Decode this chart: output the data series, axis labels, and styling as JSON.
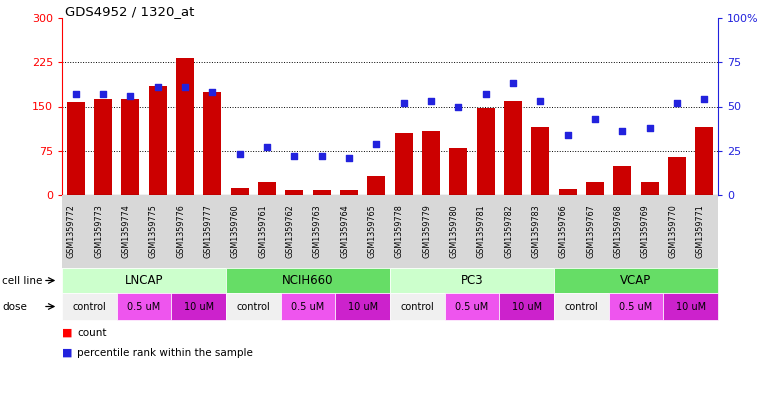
{
  "title": "GDS4952 / 1320_at",
  "samples": [
    "GSM1359772",
    "GSM1359773",
    "GSM1359774",
    "GSM1359775",
    "GSM1359776",
    "GSM1359777",
    "GSM1359760",
    "GSM1359761",
    "GSM1359762",
    "GSM1359763",
    "GSM1359764",
    "GSM1359765",
    "GSM1359778",
    "GSM1359779",
    "GSM1359780",
    "GSM1359781",
    "GSM1359782",
    "GSM1359783",
    "GSM1359766",
    "GSM1359767",
    "GSM1359768",
    "GSM1359769",
    "GSM1359770",
    "GSM1359771"
  ],
  "counts": [
    158,
    162,
    163,
    185,
    232,
    175,
    12,
    22,
    8,
    8,
    8,
    32,
    105,
    108,
    80,
    147,
    160,
    115,
    10,
    22,
    50,
    22,
    65,
    115
  ],
  "percentile": [
    57,
    57,
    56,
    61,
    61,
    58,
    23,
    27,
    22,
    22,
    21,
    29,
    52,
    53,
    50,
    57,
    63,
    53,
    34,
    43,
    36,
    38,
    52,
    54
  ],
  "cell_lines": [
    "LNCAP",
    "NCIH660",
    "PC3",
    "VCAP"
  ],
  "cell_line_colors": [
    "#ccffcc",
    "#66dd66",
    "#ccffcc",
    "#66dd66"
  ],
  "dose_labels_cycle": [
    "control",
    "0.5 uM",
    "10 uM"
  ],
  "dose_colors_cycle": [
    "#f0f0f0",
    "#ee55ee",
    "#cc22cc"
  ],
  "dose_spans": [
    2,
    2,
    2
  ],
  "bar_color": "#cc0000",
  "dot_color": "#2222dd",
  "ylim_left": [
    0,
    300
  ],
  "ylim_right": [
    0,
    100
  ],
  "yticks_left": [
    0,
    75,
    150,
    225,
    300
  ],
  "yticks_right": [
    0,
    25,
    50,
    75,
    100
  ],
  "hgrid_values": [
    75,
    150,
    225
  ],
  "xlabel_bg": "#d8d8d8",
  "left_label_bg": "#e8e8e8"
}
